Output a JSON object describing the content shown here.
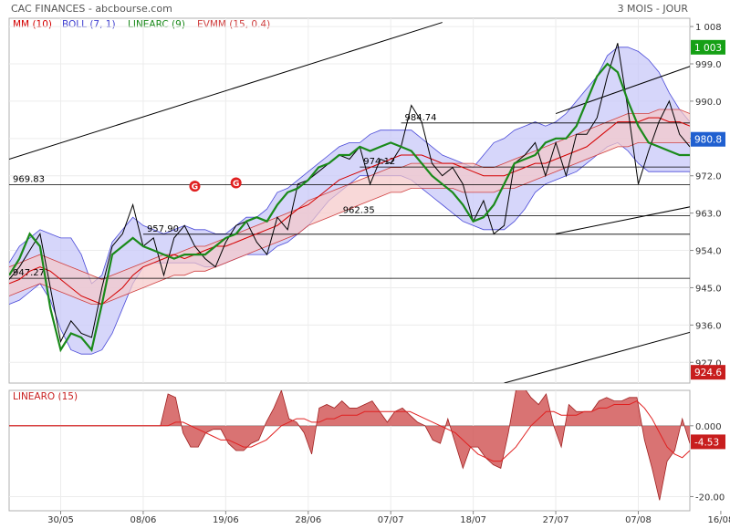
{
  "header": {
    "title": "CAC FINANCES - abcbourse.com",
    "period": "3 MOIS - JOUR"
  },
  "legend": [
    {
      "label": "MM (10)",
      "color": "#d40000"
    },
    {
      "label": "BOLL (7, 1)",
      "color": "#4040d0"
    },
    {
      "label": "LINEARC (9)",
      "color": "#1a8a1a"
    },
    {
      "label": "EVMM (15, 0.4)",
      "color": "#d04040"
    }
  ],
  "colors": {
    "price": "#000000",
    "mm": "#d40000",
    "boll_fill": "#c8c8f8",
    "boll_line": "#4a4ad8",
    "linearc": "#1a8a1a",
    "evmm_fill": "#f5c8c8",
    "evmm_line": "#d04040",
    "last_price_box": "#2060d0",
    "green_box": "#15a015",
    "red_box": "#c81e1e",
    "signal": "#e02020",
    "osc_fill": "#d05050"
  },
  "chart_data": [
    {
      "type": "line",
      "title": "CAC FINANCES",
      "x_labels": [
        "30/05",
        "08/06",
        "19/06",
        "28/06",
        "07/07",
        "18/07",
        "27/07",
        "07/08",
        "16/08"
      ],
      "x_label_index": [
        5,
        13,
        21,
        29,
        37,
        45,
        53,
        61,
        69
      ],
      "ylim": [
        922,
        1010
      ],
      "yticks": [
        927.0,
        936.0,
        945.0,
        954.0,
        963.0,
        972.0,
        981.0,
        990.0,
        999.0,
        1008
      ],
      "ytick_labels": [
        "927.0",
        "936.0",
        "945.0",
        "954.0",
        "963.0",
        "972.0",
        "",
        "990.0",
        "999.0",
        "1 008"
      ],
      "price": [
        947,
        950,
        954,
        958,
        945,
        932,
        937,
        934,
        933,
        945,
        955,
        958,
        965,
        955,
        957,
        948,
        957,
        960,
        955,
        952,
        950,
        956,
        960,
        961,
        956,
        953,
        962,
        959,
        970,
        971,
        973,
        975,
        977,
        976,
        979,
        970,
        976,
        975,
        979,
        989,
        985,
        975,
        972,
        974,
        970,
        961,
        966,
        958,
        960,
        975,
        977,
        980,
        972,
        980,
        972,
        982,
        982,
        986,
        996,
        1004,
        988,
        970,
        978,
        985,
        990,
        982,
        979
      ],
      "series": [
        {
          "name": "MM (10)",
          "values": [
            946,
            947,
            949,
            950,
            949,
            947,
            945,
            943,
            942,
            941,
            943,
            945,
            948,
            950,
            951,
            952,
            953,
            952,
            953,
            954,
            955,
            955,
            956,
            957,
            958,
            959,
            960,
            962,
            964,
            965,
            967,
            969,
            971,
            972,
            973,
            974,
            975,
            976,
            977,
            977,
            977,
            976,
            975,
            975,
            974,
            973,
            972,
            972,
            972,
            973,
            974,
            975,
            975,
            976,
            977,
            978,
            979,
            981,
            983,
            985,
            985,
            985,
            986,
            986,
            985,
            985,
            984
          ]
        },
        {
          "name": "LINEARC (9)",
          "values": [
            948,
            952,
            958,
            955,
            940,
            930,
            934,
            933,
            930,
            941,
            953,
            955,
            957,
            955,
            954,
            953,
            952,
            953,
            953,
            953,
            955,
            957,
            958,
            961,
            962,
            961,
            965,
            968,
            969,
            971,
            974,
            975,
            977,
            977,
            979,
            978,
            979,
            980,
            979,
            978,
            975,
            972,
            970,
            968,
            965,
            961,
            962,
            965,
            970,
            975,
            976,
            977,
            980,
            981,
            981,
            984,
            990,
            996,
            999,
            997,
            990,
            984,
            980,
            979,
            978,
            977,
            977
          ]
        },
        {
          "name": "BOLL (7, 1) upper",
          "values": [
            951,
            955,
            957,
            959,
            958,
            957,
            957,
            953,
            946,
            948,
            956,
            959,
            962,
            960,
            959,
            958,
            959,
            960,
            959,
            959,
            958,
            958,
            960,
            962,
            962,
            964,
            968,
            969,
            971,
            973,
            975,
            977,
            979,
            980,
            980,
            982,
            983,
            983,
            983,
            983,
            981,
            979,
            977,
            976,
            975,
            974,
            977,
            980,
            981,
            983,
            984,
            985,
            984,
            985,
            987,
            990,
            993,
            996,
            1001,
            1003,
            1003,
            1002,
            1000,
            997,
            992,
            988,
            985
          ]
        },
        {
          "name": "BOLL (7, 1) lower",
          "values": [
            941,
            942,
            944,
            946,
            942,
            935,
            930,
            929,
            929,
            930,
            934,
            940,
            946,
            950,
            951,
            951,
            951,
            951,
            951,
            950,
            950,
            951,
            952,
            953,
            953,
            953,
            955,
            956,
            958,
            960,
            963,
            966,
            968,
            970,
            972,
            972,
            972,
            972,
            972,
            971,
            969,
            967,
            965,
            963,
            961,
            960,
            959,
            959,
            959,
            961,
            964,
            968,
            970,
            971,
            972,
            973,
            975,
            977,
            979,
            980,
            978,
            975,
            973,
            973,
            973,
            973,
            973
          ]
        },
        {
          "name": "EVMM (15, 0.4) upper",
          "values": [
            950,
            951,
            952,
            953,
            952,
            951,
            950,
            949,
            948,
            947,
            948,
            949,
            950,
            951,
            952,
            953,
            953,
            954,
            955,
            955,
            956,
            957,
            958,
            959,
            960,
            961,
            962,
            963,
            964,
            966,
            967,
            968,
            969,
            970,
            971,
            972,
            973,
            974,
            974,
            975,
            975,
            975,
            975,
            975,
            975,
            975,
            974,
            974,
            975,
            976,
            977,
            978,
            979,
            980,
            981,
            982,
            983,
            984,
            985,
            986,
            987,
            987,
            987,
            988,
            988,
            988,
            987
          ]
        },
        {
          "name": "EVMM (15, 0.4) lower",
          "values": [
            943,
            944,
            945,
            946,
            945,
            944,
            943,
            942,
            941,
            941,
            942,
            943,
            944,
            945,
            946,
            947,
            948,
            948,
            949,
            949,
            950,
            951,
            952,
            953,
            954,
            955,
            956,
            957,
            958,
            960,
            961,
            962,
            963,
            964,
            965,
            966,
            967,
            968,
            968,
            969,
            969,
            969,
            969,
            969,
            968,
            968,
            968,
            968,
            969,
            969,
            970,
            971,
            972,
            973,
            974,
            975,
            976,
            977,
            978,
            979,
            979,
            980,
            980,
            980,
            980,
            980,
            980
          ]
        }
      ],
      "levels": [
        {
          "label": "984.74",
          "value": 984.74,
          "from": 38
        },
        {
          "label": "974.12",
          "value": 974.12,
          "from": 34
        },
        {
          "label": "969.83",
          "value": 969.83,
          "from": 0
        },
        {
          "label": "962.35",
          "value": 962.35,
          "from": 32
        },
        {
          "label": "957.90",
          "value": 957.9,
          "from": 13
        },
        {
          "label": "947.27",
          "value": 947.27,
          "from": 0
        }
      ],
      "trendlines": [
        {
          "points": [
            [
              0,
              976
            ],
            [
              42,
              1009
            ]
          ]
        },
        {
          "points": [
            [
              53,
              987
            ],
            [
              77,
              1008
            ]
          ]
        },
        {
          "points": [
            [
              53,
              958
            ],
            [
              77,
              970
            ]
          ]
        },
        {
          "points": [
            [
              48,
              922
            ],
            [
              73,
              939
            ]
          ]
        }
      ],
      "signals": [
        {
          "x": 18,
          "value": 969.5,
          "label": "G"
        },
        {
          "x": 22,
          "value": 970.3,
          "label": "G"
        }
      ],
      "right_badges": [
        {
          "label": "1 003",
          "value": 1003,
          "color_key": "green_box"
        },
        {
          "label": "980.8",
          "value": 980.8,
          "color_key": "last_price_box"
        },
        {
          "label": "924.6",
          "value": 924.6,
          "color_key": "red_box"
        }
      ]
    },
    {
      "type": "area",
      "title": "LINEARO (15)",
      "ylim": [
        -24,
        10
      ],
      "yticks": [
        0.0,
        -20.0
      ],
      "ytick_labels": [
        "0.000",
        "-20.00"
      ],
      "values": [
        0,
        0,
        0,
        0,
        0,
        0,
        0,
        0,
        0,
        0,
        0,
        0,
        0,
        0,
        0,
        0,
        0,
        0,
        0,
        0,
        0,
        9,
        8,
        -2,
        -6,
        -6,
        -2,
        -1,
        -1,
        -5,
        -7,
        -7,
        -5,
        -4,
        1,
        5,
        10,
        2,
        1,
        -2,
        -8,
        5,
        6,
        5,
        7,
        5,
        5,
        6,
        7,
        4,
        1,
        4,
        5,
        3,
        1,
        0,
        -4,
        -5,
        2,
        -5,
        -12,
        -6,
        -6,
        -9,
        -11,
        -12,
        -2,
        10,
        11,
        8,
        6,
        9,
        0,
        -6,
        6,
        4,
        4,
        4,
        7,
        8,
        7,
        7,
        8,
        8,
        -4,
        -12,
        -21,
        -10,
        -7,
        2,
        -5
      ],
      "signal_values": [
        0,
        0,
        0,
        0,
        0,
        0,
        0,
        0,
        0,
        0,
        0,
        0,
        0,
        0,
        0,
        0,
        0,
        0,
        0,
        0,
        0,
        0,
        1,
        1,
        0,
        -1,
        -2,
        -3,
        -4,
        -4,
        -5,
        -6,
        -6,
        -5,
        -4,
        -2,
        0,
        1,
        2,
        2,
        1,
        1,
        2,
        2,
        3,
        3,
        3,
        4,
        4,
        4,
        4,
        4,
        4,
        4,
        3,
        2,
        1,
        0,
        -1,
        -2,
        -4,
        -6,
        -8,
        -9,
        -10,
        -10,
        -8,
        -6,
        -3,
        0,
        2,
        4,
        4,
        3,
        3,
        3,
        4,
        4,
        5,
        5,
        6,
        6,
        6,
        7,
        5,
        2,
        -2,
        -6,
        -8,
        -9,
        -7
      ],
      "right_badges": [
        {
          "label": "-4.53",
          "value": -4.53,
          "color_key": "red_box"
        }
      ]
    }
  ]
}
